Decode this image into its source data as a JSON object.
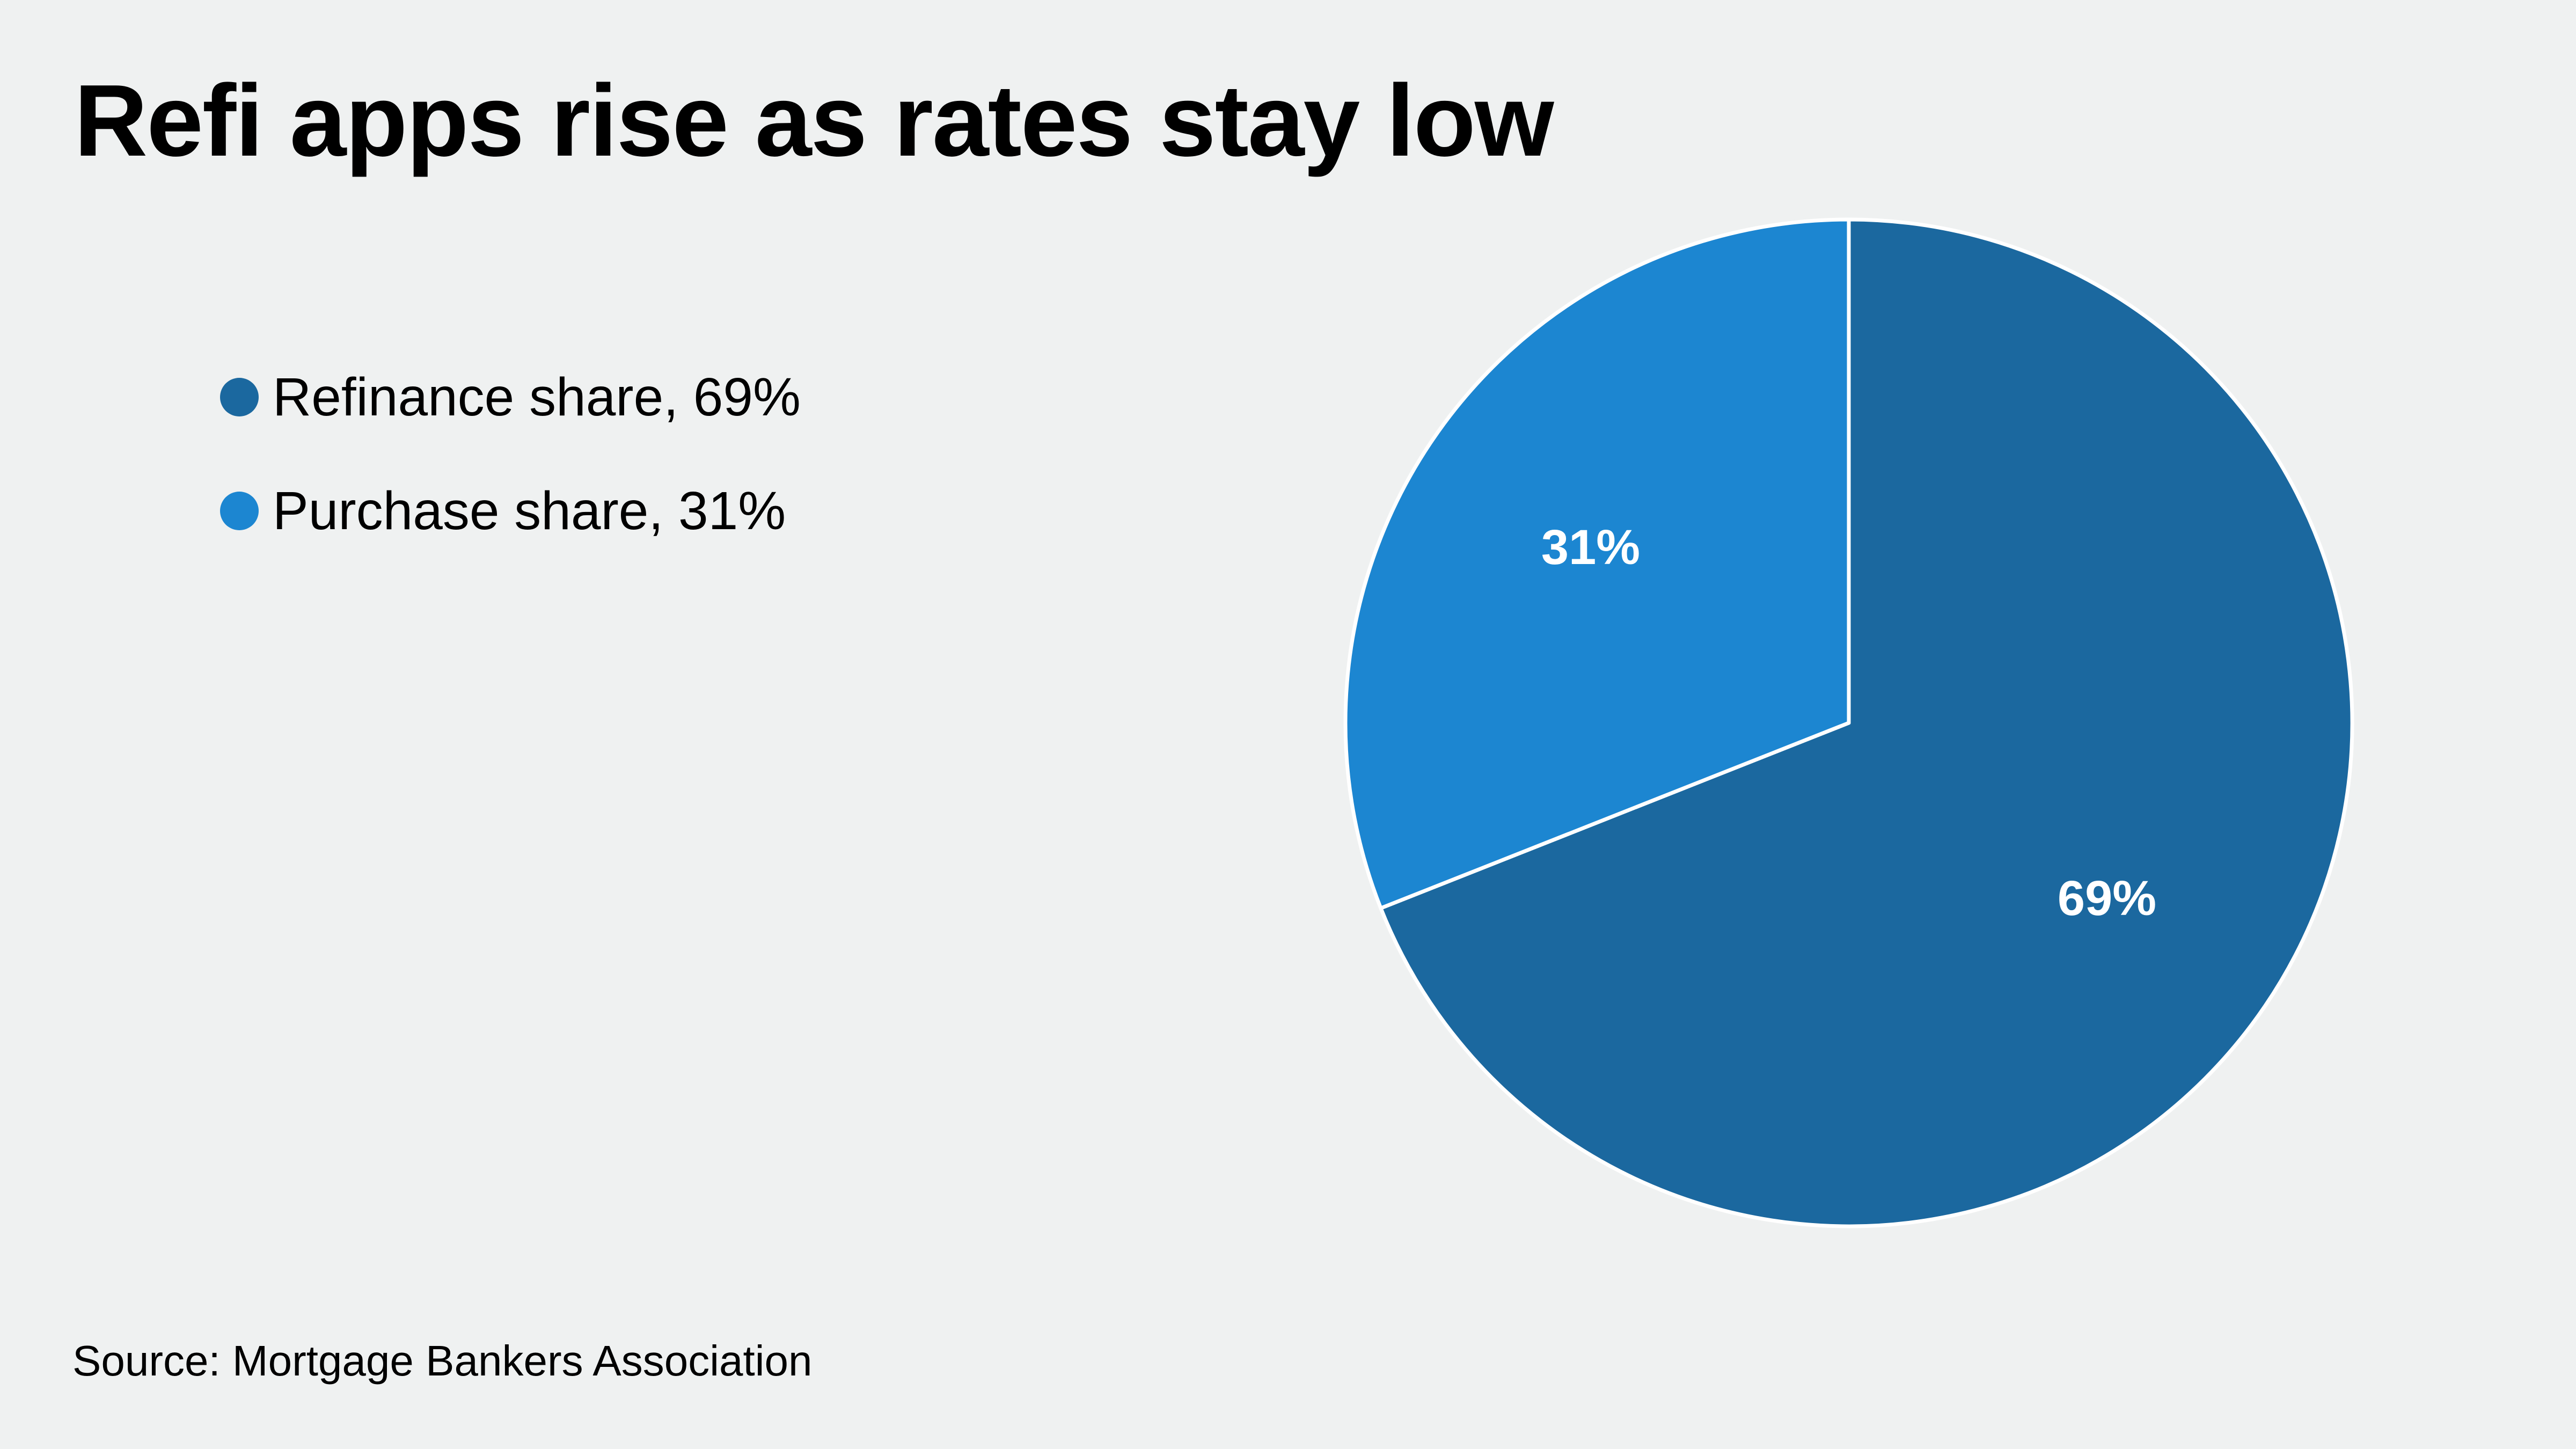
{
  "title": "Refi apps rise as rates stay low",
  "source": "Source: Mortgage Bankers Association",
  "legend": {
    "items": [
      {
        "label": "Refinance share, 69%",
        "color": "#1b689f"
      },
      {
        "label": "Purchase share, 31%",
        "color": "#1c86d1"
      }
    ],
    "placement": "left"
  },
  "chart_data": {
    "type": "pie",
    "title": "Refi apps rise as rates stay low",
    "slices": [
      {
        "name": "Refinance share",
        "value": 69,
        "label": "69%",
        "color": "#1b689f"
      },
      {
        "name": "Purchase share",
        "value": 31,
        "label": "31%",
        "color": "#1c86d1"
      }
    ],
    "start_angle_deg": 0,
    "direction": "clockwise",
    "legend": "left"
  }
}
